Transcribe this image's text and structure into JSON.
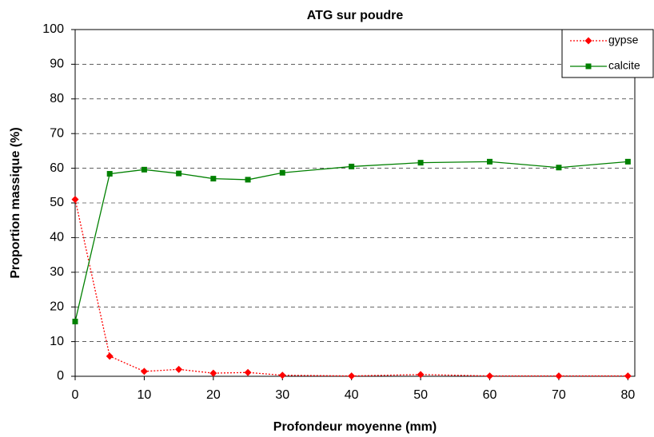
{
  "chart_data": {
    "type": "line",
    "title": "ATG sur poudre",
    "x_label": "Profondeur moyenne (mm)",
    "y_label": "Proportion massique (%)",
    "x": [
      0,
      5,
      10,
      15,
      20,
      25,
      30,
      40,
      50,
      60,
      70,
      80
    ],
    "series": [
      {
        "name": "gypse",
        "color": "#ff0000",
        "marker": "diamond",
        "linestyle": "dotted",
        "values": [
          51,
          5.8,
          1.4,
          2,
          0.9,
          1.1,
          0.3,
          0.1,
          0.5,
          0.1,
          0.1,
          0.1
        ]
      },
      {
        "name": "calcite",
        "color": "#008000",
        "marker": "square",
        "linestyle": "solid",
        "values": [
          15.8,
          58.4,
          59.6,
          58.5,
          57,
          56.7,
          58.7,
          60.5,
          61.6,
          61.9,
          60.2,
          61.9
        ]
      }
    ],
    "xlim": [
      0,
      81
    ],
    "xticks": [
      0,
      10,
      20,
      30,
      40,
      50,
      60,
      70,
      80
    ],
    "ylim": [
      0,
      100
    ],
    "yticks": [
      0,
      10,
      20,
      30,
      40,
      50,
      60,
      70,
      80,
      90,
      100
    ],
    "grid": true,
    "legend": "top-right"
  }
}
